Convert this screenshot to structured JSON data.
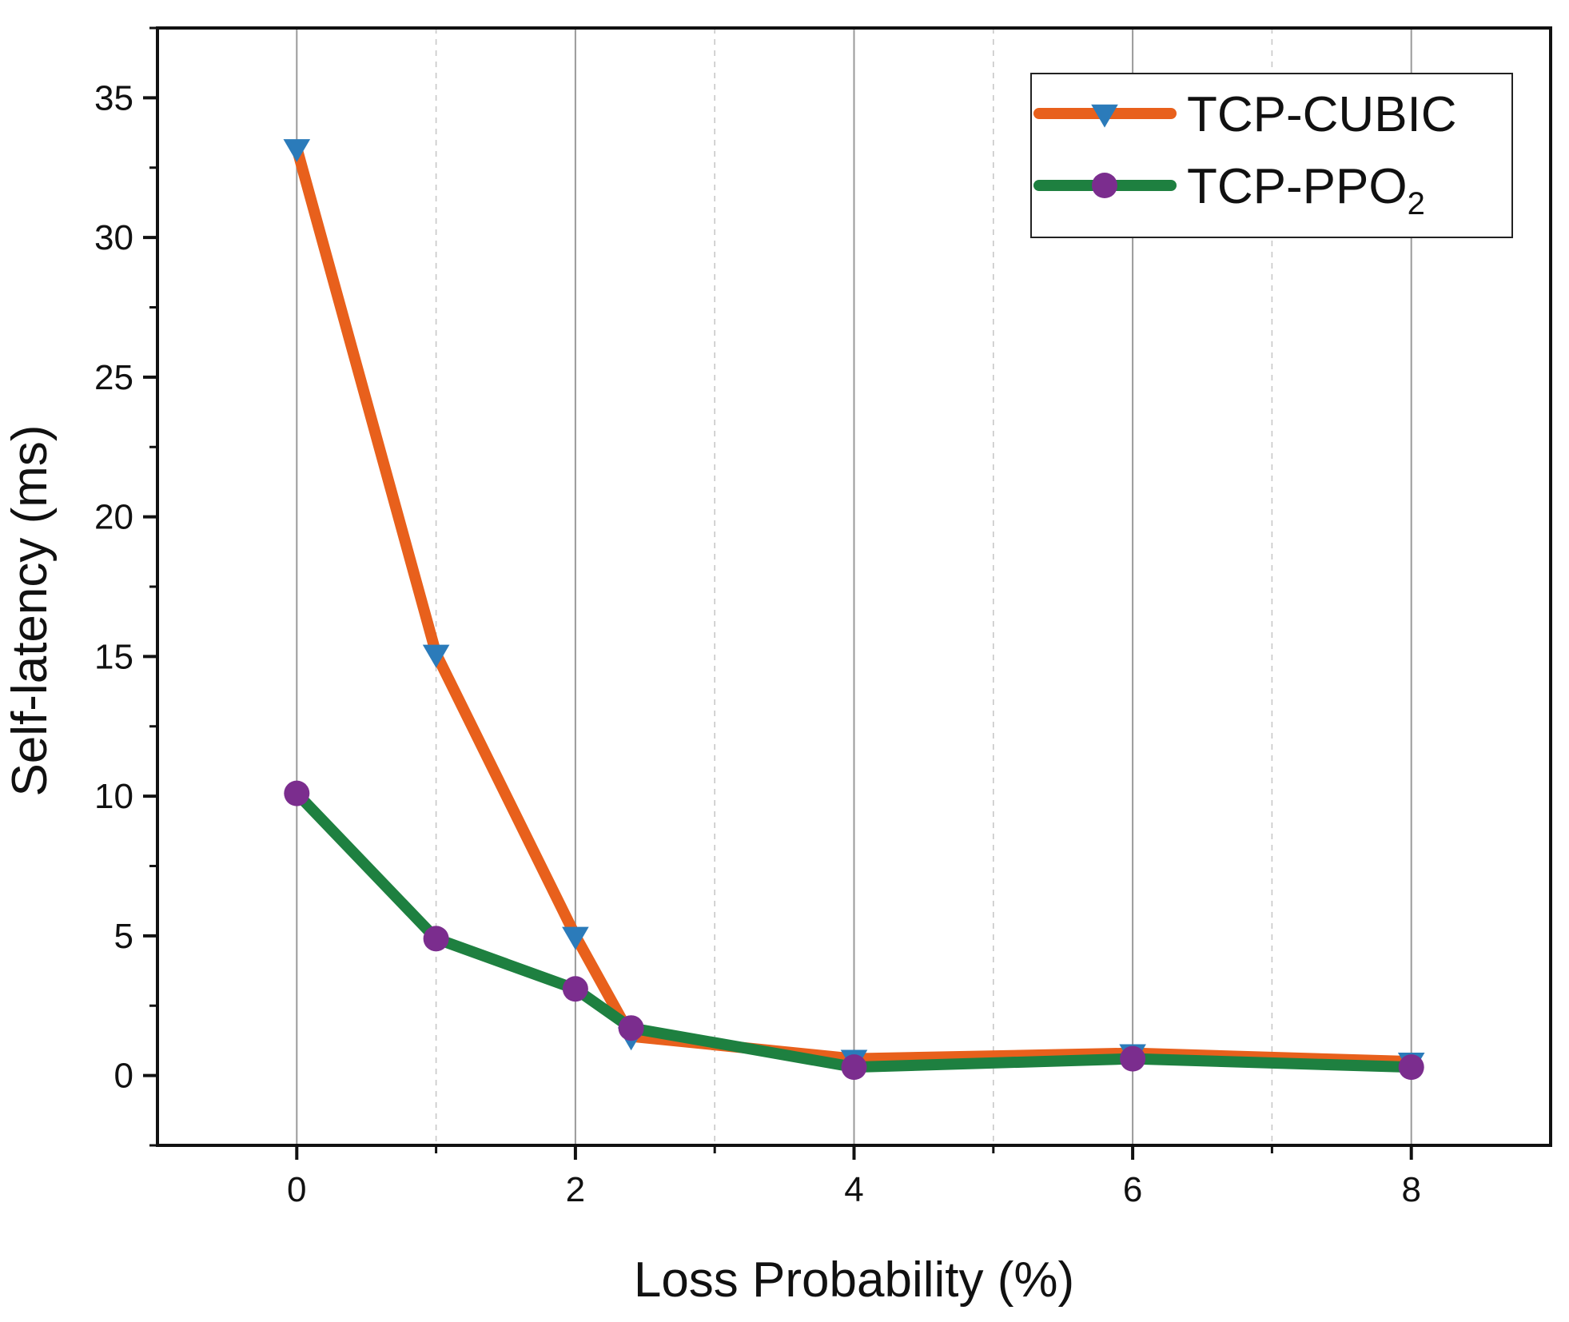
{
  "chart_data": {
    "type": "line",
    "xlabel": "Loss Probability (%)",
    "ylabel": "Self-latency (ms)",
    "xlim": [
      -1,
      9
    ],
    "ylim": [
      -2.5,
      37.5
    ],
    "xticks": [
      0,
      2,
      4,
      6,
      8
    ],
    "xminor": [
      1,
      3,
      5,
      7
    ],
    "yticks": [
      0,
      5,
      10,
      15,
      20,
      25,
      30,
      35
    ],
    "grid": "vertical",
    "legend_position": "top-right",
    "series": [
      {
        "name": "TCP-CUBIC",
        "legend_base": "TCP-CUBIC",
        "legend_sub": "",
        "line_color": "#e8601c",
        "marker": "triangle-down",
        "marker_color": "#2b7bba",
        "x": [
          0,
          1,
          2,
          2.4,
          4,
          6,
          8
        ],
        "y": [
          33.2,
          15.1,
          5.0,
          1.4,
          0.6,
          0.8,
          0.5
        ]
      },
      {
        "name": "TCP-PPO2",
        "legend_base": "TCP-PPO",
        "legend_sub": "2",
        "line_color": "#1e8040",
        "marker": "circle",
        "marker_color": "#7b2d8e",
        "x": [
          0,
          1,
          2,
          2.4,
          4,
          6,
          8
        ],
        "y": [
          10.1,
          4.9,
          3.1,
          1.7,
          0.3,
          0.6,
          0.3
        ]
      }
    ]
  }
}
